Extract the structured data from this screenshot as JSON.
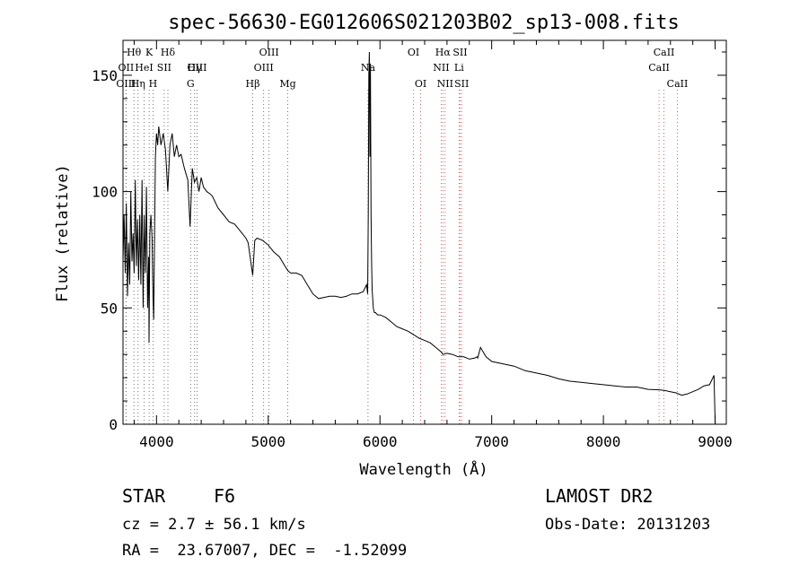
{
  "chart_data": {
    "type": "line",
    "title": "spec-56630-EG012606S021203B02_sp13-008.fits",
    "xlabel": "Wavelength (Å)",
    "ylabel": "Flux (relative)",
    "xlim": [
      3700,
      9100
    ],
    "ylim": [
      0,
      1650
    ],
    "x_ticks": [
      4000,
      5000,
      6000,
      7000,
      8000,
      9000
    ],
    "y_ticks": [
      0,
      500,
      1000,
      1500
    ],
    "y_tick_labels": [
      "0",
      "50",
      "100",
      "150"
    ],
    "grid": false,
    "series": [
      {
        "x": [
          3700,
          3710,
          3720,
          3730,
          3740,
          3750,
          3760,
          3770,
          3780,
          3790,
          3800,
          3810,
          3820,
          3830,
          3840,
          3850,
          3860,
          3870,
          3880,
          3890,
          3900,
          3910,
          3920,
          3930,
          3933,
          3940,
          3950,
          3960,
          3968,
          3975,
          3990,
          4000,
          4010,
          4020,
          4040,
          4060,
          4080,
          4101,
          4120,
          4140,
          4160,
          4180,
          4200,
          4220,
          4250,
          4280,
          4300,
          4320,
          4340,
          4360,
          4380,
          4400,
          4420,
          4450,
          4480,
          4500,
          4550,
          4600,
          4650,
          4700,
          4750,
          4800,
          4820,
          4861,
          4880,
          4900,
          4950,
          5000,
          5050,
          5100,
          5150,
          5175,
          5200,
          5250,
          5300,
          5350,
          5400,
          5450,
          5500,
          5550,
          5600,
          5650,
          5700,
          5750,
          5800,
          5850,
          5880,
          5890,
          5895,
          5900,
          5905,
          5910,
          5915,
          5920,
          5925,
          5930,
          5940,
          5950,
          5960,
          5980,
          6000,
          6050,
          6100,
          6150,
          6200,
          6250,
          6300,
          6350,
          6400,
          6450,
          6500,
          6550,
          6563,
          6600,
          6650,
          6700,
          6750,
          6800,
          6850,
          6870,
          6875,
          6900,
          6950,
          7000,
          7100,
          7200,
          7300,
          7400,
          7500,
          7600,
          7700,
          7800,
          7900,
          8000,
          8100,
          8200,
          8300,
          8400,
          8500,
          8550,
          8600,
          8650,
          8700,
          8750,
          8800,
          8850,
          8900,
          8950,
          8980,
          8990,
          9000
        ],
        "y": [
          700,
          900,
          650,
          950,
          550,
          780,
          600,
          1000,
          700,
          820,
          650,
          1050,
          680,
          880,
          620,
          900,
          600,
          1050,
          500,
          900,
          650,
          1020,
          500,
          720,
          350,
          820,
          900,
          800,
          550,
          450,
          1150,
          1250,
          1200,
          1280,
          1200,
          1250,
          1180,
          1000,
          1200,
          1250,
          1150,
          1200,
          1150,
          1160,
          1100,
          1050,
          850,
          1100,
          1040,
          1060,
          1000,
          1060,
          1020,
          1000,
          990,
          980,
          930,
          900,
          870,
          860,
          830,
          800,
          780,
          640,
          790,
          800,
          790,
          770,
          740,
          720,
          680,
          660,
          650,
          650,
          640,
          600,
          560,
          540,
          545,
          550,
          550,
          545,
          550,
          560,
          560,
          570,
          600,
          560,
          900,
          1500,
          1600,
          1150,
          1550,
          900,
          700,
          580,
          500,
          480,
          480,
          470,
          470,
          460,
          440,
          420,
          410,
          400,
          385,
          370,
          360,
          350,
          330,
          310,
          300,
          305,
          300,
          290,
          290,
          280,
          285,
          290,
          285,
          330,
          290,
          270,
          260,
          250,
          230,
          220,
          210,
          195,
          185,
          180,
          175,
          170,
          165,
          160,
          160,
          150,
          148,
          145,
          140,
          135,
          125,
          130,
          140,
          150,
          165,
          170,
          200,
          210,
          0
        ]
      }
    ],
    "lines": [
      {
        "label": "Hθ",
        "x": 3798,
        "row": 0
      },
      {
        "label": "K",
        "x": 3934,
        "row": 0
      },
      {
        "label": "Hδ",
        "x": 4102,
        "row": 0
      },
      {
        "label": "OIII",
        "x": 5007,
        "row": 0
      },
      {
        "label": "OI",
        "x": 6300,
        "row": 0
      },
      {
        "label": "Hα",
        "x": 6563,
        "row": 0
      },
      {
        "label": "SII",
        "x": 6717,
        "row": 0
      },
      {
        "label": "CaII",
        "x": 8542,
        "row": 0
      },
      {
        "label": "OII",
        "x": 3727,
        "row": 1
      },
      {
        "label": "HeI",
        "x": 3889,
        "row": 1
      },
      {
        "label": "SII",
        "x": 4069,
        "row": 1
      },
      {
        "label": "OIII",
        "x": 4363,
        "row": 1
      },
      {
        "label": "OIII",
        "x": 4959,
        "row": 1
      },
      {
        "label": "NII",
        "x": 6548,
        "row": 1
      },
      {
        "label": "Li",
        "x": 6708,
        "row": 1
      },
      {
        "label": "CaII",
        "x": 8498,
        "row": 1
      },
      {
        "label": "OIII",
        "x": 3727,
        "row": 2
      },
      {
        "label": "Hη",
        "x": 3835,
        "row": 2
      },
      {
        "label": "H",
        "x": 3969,
        "row": 2
      },
      {
        "label": "Hγ",
        "x": 4341,
        "row": 1.5
      },
      {
        "label": "G",
        "x": 4305,
        "row": 2
      },
      {
        "label": "Hβ",
        "x": 4861,
        "row": 2
      },
      {
        "label": "Mg",
        "x": 5175,
        "row": 2
      },
      {
        "label": "Na",
        "x": 5893,
        "row": 1.5
      },
      {
        "label": "OI",
        "x": 6364,
        "row": 2
      },
      {
        "label": "NII",
        "x": 6583,
        "row": 2
      },
      {
        "label": "SII",
        "x": 6731,
        "row": 2
      },
      {
        "label": "CaII",
        "x": 8662,
        "row": 2
      }
    ]
  },
  "info": {
    "object_class": "STAR",
    "subclass": "F6",
    "survey": "LAMOST DR2",
    "cz": "cz = 2.7 ± 56.1 km/s",
    "obs_date": "Obs-Date: 20131203",
    "coords": "RA =  23.67007, DEC =  -1.52099"
  }
}
